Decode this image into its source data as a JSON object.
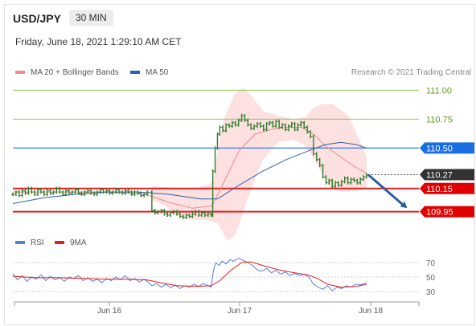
{
  "header": {
    "symbol": "USD/JPY",
    "timeframe": "30 MIN",
    "timestamp": "Friday, June 18, 2021 1:29:10 AM CET"
  },
  "legend_top": {
    "items": [
      {
        "label": "MA 20 + Bollinger Bands",
        "color": "#f08a8a"
      },
      {
        "label": "MA 50",
        "color": "#2b5fb0"
      }
    ],
    "credit": "Research © 2021 Trading Central"
  },
  "legend_bottom": {
    "items": [
      {
        "label": "RSI",
        "color": "#5b7fd6"
      },
      {
        "label": "9MA",
        "color": "#e02020"
      }
    ]
  },
  "colors": {
    "candle": "#2f7d2a",
    "resistance_line": "#8dc44e",
    "pivot_line": "#3c78d8",
    "support_line": "#e02020",
    "bollinger_fill": "#fde0e0",
    "ma20": "#f08a8a",
    "ma50": "#2b5fb0",
    "arrow": "#2c5f9e",
    "rsi": "#5b7fd6",
    "rsi_ma": "#e02020"
  },
  "chart_data": [
    {
      "type": "line",
      "title": "USD/JPY 30 MIN",
      "x_ticks": [
        "Jun 16",
        "Jun 17",
        "Jun 18"
      ],
      "ylim": [
        109.85,
        111.1
      ],
      "levels": [
        {
          "value": 111.0,
          "label": "111.00",
          "kind": "resistance"
        },
        {
          "value": 110.75,
          "label": "110.75",
          "kind": "resistance"
        },
        {
          "value": 110.5,
          "label": "110.50",
          "kind": "pivot"
        },
        {
          "value": 110.27,
          "label": "110.27",
          "kind": "last"
        },
        {
          "value": 110.15,
          "label": "110.15",
          "kind": "support"
        },
        {
          "value": 109.95,
          "label": "109.95",
          "kind": "support"
        }
      ],
      "price_series": {
        "name": "USD/JPY",
        "points": [
          [
            0,
            110.1
          ],
          [
            4,
            110.12
          ],
          [
            8,
            110.09
          ],
          [
            12,
            110.13
          ],
          [
            16,
            110.11
          ],
          [
            20,
            110.15
          ],
          [
            24,
            110.12
          ],
          [
            28,
            110.1
          ],
          [
            32,
            110.14
          ],
          [
            36,
            110.12
          ],
          [
            40,
            110.1
          ],
          [
            44,
            110.13
          ],
          [
            48,
            110.11
          ],
          [
            52,
            110.12
          ],
          [
            56,
            110.15
          ],
          [
            60,
            110.12
          ],
          [
            64,
            110.1
          ],
          [
            68,
            110.13
          ],
          [
            72,
            110.11
          ],
          [
            76,
            110.12
          ],
          [
            80,
            110.14
          ],
          [
            84,
            110.11
          ],
          [
            88,
            110.1
          ],
          [
            92,
            110.12
          ],
          [
            96,
            110.13
          ],
          [
            100,
            110.11
          ],
          [
            104,
            110.1
          ],
          [
            108,
            110.12
          ],
          [
            112,
            110.14
          ],
          [
            116,
            110.12
          ],
          [
            120,
            110.13
          ],
          [
            124,
            110.11
          ],
          [
            128,
            110.12
          ],
          [
            132,
            110.14
          ],
          [
            136,
            110.12
          ],
          [
            140,
            110.11
          ],
          [
            144,
            110.13
          ],
          [
            148,
            110.12
          ],
          [
            152,
            110.1
          ],
          [
            156,
            110.12
          ],
          [
            160,
            110.11
          ],
          [
            164,
            110.09
          ],
          [
            168,
            110.1
          ],
          [
            172,
            110.12
          ],
          [
            178,
            109.96
          ],
          [
            182,
            109.94
          ],
          [
            186,
            109.95
          ],
          [
            190,
            109.96
          ],
          [
            194,
            109.93
          ],
          [
            198,
            109.92
          ],
          [
            202,
            109.94
          ],
          [
            206,
            109.95
          ],
          [
            210,
            109.93
          ],
          [
            214,
            109.91
          ],
          [
            218,
            109.9
          ],
          [
            222,
            109.92
          ],
          [
            226,
            109.91
          ],
          [
            230,
            109.93
          ],
          [
            234,
            109.95
          ],
          [
            238,
            109.92
          ],
          [
            242,
            109.94
          ],
          [
            246,
            109.92
          ],
          [
            250,
            109.93
          ],
          [
            254,
            109.92
          ],
          [
            256,
            110.3
          ],
          [
            259,
            110.5
          ],
          [
            262,
            110.62
          ],
          [
            265,
            110.68
          ],
          [
            269,
            110.65
          ],
          [
            273,
            110.7
          ],
          [
            277,
            110.69
          ],
          [
            281,
            110.72
          ],
          [
            285,
            110.7
          ],
          [
            289,
            110.74
          ],
          [
            293,
            110.78
          ],
          [
            297,
            110.74
          ],
          [
            301,
            110.7
          ],
          [
            305,
            110.67
          ],
          [
            309,
            110.69
          ],
          [
            313,
            110.71
          ],
          [
            317,
            110.69
          ],
          [
            321,
            110.66
          ],
          [
            325,
            110.71
          ],
          [
            329,
            110.72
          ],
          [
            333,
            110.69
          ],
          [
            337,
            110.73
          ],
          [
            341,
            110.68
          ],
          [
            345,
            110.7
          ],
          [
            349,
            110.66
          ],
          [
            353,
            110.69
          ],
          [
            357,
            110.71
          ],
          [
            361,
            110.66
          ],
          [
            365,
            110.7
          ],
          [
            369,
            110.72
          ],
          [
            373,
            110.68
          ],
          [
            377,
            110.64
          ],
          [
            381,
            110.6
          ],
          [
            385,
            110.45
          ],
          [
            389,
            110.4
          ],
          [
            393,
            110.35
          ],
          [
            397,
            110.25
          ],
          [
            401,
            110.2
          ],
          [
            405,
            110.22
          ],
          [
            409,
            110.17
          ],
          [
            413,
            110.2
          ],
          [
            417,
            110.18
          ],
          [
            421,
            110.21
          ],
          [
            425,
            110.24
          ],
          [
            429,
            110.2
          ],
          [
            433,
            110.23
          ],
          [
            437,
            110.22
          ],
          [
            441,
            110.2
          ],
          [
            445,
            110.23
          ],
          [
            449,
            110.25
          ],
          [
            453,
            110.27
          ]
        ]
      },
      "ma20": [
        [
          0,
          110.12
        ],
        [
          60,
          110.12
        ],
        [
          120,
          110.12
        ],
        [
          170,
          110.1
        ],
        [
          200,
          110.03
        ],
        [
          230,
          109.98
        ],
        [
          255,
          110.0
        ],
        [
          270,
          110.2
        ],
        [
          290,
          110.48
        ],
        [
          310,
          110.62
        ],
        [
          330,
          110.66
        ],
        [
          350,
          110.68
        ],
        [
          370,
          110.68
        ],
        [
          385,
          110.62
        ],
        [
          400,
          110.52
        ],
        [
          420,
          110.42
        ],
        [
          440,
          110.33
        ],
        [
          453,
          110.28
        ]
      ],
      "ma50": [
        [
          0,
          110.02
        ],
        [
          40,
          110.07
        ],
        [
          80,
          110.1
        ],
        [
          120,
          110.12
        ],
        [
          160,
          110.12
        ],
        [
          200,
          110.1
        ],
        [
          240,
          110.06
        ],
        [
          262,
          110.06
        ],
        [
          290,
          110.18
        ],
        [
          320,
          110.3
        ],
        [
          350,
          110.4
        ],
        [
          380,
          110.48
        ],
        [
          400,
          110.53
        ],
        [
          420,
          110.55
        ],
        [
          440,
          110.53
        ],
        [
          453,
          110.5
        ]
      ],
      "bollinger_upper": [
        [
          178,
          110.17
        ],
        [
          200,
          110.16
        ],
        [
          230,
          110.14
        ],
        [
          255,
          110.2
        ],
        [
          270,
          110.75
        ],
        [
          285,
          110.98
        ],
        [
          295,
          111.02
        ],
        [
          305,
          110.96
        ],
        [
          320,
          110.82
        ],
        [
          340,
          110.78
        ],
        [
          360,
          110.75
        ],
        [
          375,
          110.77
        ],
        [
          385,
          110.85
        ],
        [
          395,
          110.88
        ],
        [
          410,
          110.88
        ],
        [
          430,
          110.78
        ],
        [
          445,
          110.55
        ],
        [
          453,
          110.42
        ]
      ],
      "bollinger_lower": [
        [
          453,
          110.15
        ],
        [
          440,
          110.13
        ],
        [
          420,
          110.12
        ],
        [
          405,
          110.17
        ],
        [
          390,
          110.35
        ],
        [
          375,
          110.52
        ],
        [
          360,
          110.57
        ],
        [
          340,
          110.55
        ],
        [
          320,
          110.4
        ],
        [
          300,
          110.05
        ],
        [
          285,
          109.75
        ],
        [
          275,
          109.7
        ],
        [
          262,
          109.85
        ],
        [
          245,
          109.88
        ],
        [
          230,
          109.88
        ],
        [
          210,
          109.92
        ],
        [
          195,
          110.0
        ],
        [
          178,
          110.05
        ]
      ],
      "forecast_arrow": {
        "from": [
          455,
          110.27
        ],
        "to": [
          505,
          109.98
        ]
      }
    },
    {
      "type": "line",
      "title": "RSI",
      "ylim": [
        20,
        80
      ],
      "y_ticks": [
        70,
        50,
        30
      ],
      "x_ticks": [
        "Jun 16",
        "Jun 17",
        "Jun 18"
      ],
      "series": [
        {
          "name": "RSI",
          "points": [
            [
              0,
              55
            ],
            [
              6,
              46
            ],
            [
              12,
              52
            ],
            [
              18,
              44
            ],
            [
              24,
              50
            ],
            [
              30,
              47
            ],
            [
              36,
              53
            ],
            [
              42,
              45
            ],
            [
              48,
              51
            ],
            [
              54,
              46
            ],
            [
              60,
              49
            ],
            [
              66,
              44
            ],
            [
              72,
              50
            ],
            [
              78,
              48
            ],
            [
              84,
              52
            ],
            [
              90,
              45
            ],
            [
              96,
              49
            ],
            [
              102,
              44
            ],
            [
              108,
              47
            ],
            [
              114,
              42
            ],
            [
              120,
              48
            ],
            [
              126,
              45
            ],
            [
              132,
              50
            ],
            [
              138,
              46
            ],
            [
              144,
              52
            ],
            [
              150,
              45
            ],
            [
              156,
              48
            ],
            [
              162,
              43
            ],
            [
              168,
              47
            ],
            [
              172,
              44
            ],
            [
              178,
              38
            ],
            [
              184,
              41
            ],
            [
              190,
              36
            ],
            [
              196,
              40
            ],
            [
              202,
              35
            ],
            [
              208,
              39
            ],
            [
              214,
              34
            ],
            [
              220,
              38
            ],
            [
              226,
              36
            ],
            [
              232,
              40
            ],
            [
              238,
              37
            ],
            [
              244,
              41
            ],
            [
              250,
              38
            ],
            [
              254,
              36
            ],
            [
              257,
              60
            ],
            [
              260,
              70
            ],
            [
              264,
              66
            ],
            [
              268,
              72
            ],
            [
              273,
              68
            ],
            [
              278,
              74
            ],
            [
              283,
              72
            ],
            [
              289,
              76
            ],
            [
              295,
              73
            ],
            [
              301,
              70
            ],
            [
              307,
              66
            ],
            [
              313,
              60
            ],
            [
              319,
              58
            ],
            [
              325,
              62
            ],
            [
              331,
              56
            ],
            [
              337,
              59
            ],
            [
              343,
              54
            ],
            [
              349,
              57
            ],
            [
              355,
              52
            ],
            [
              361,
              55
            ],
            [
              367,
              52
            ],
            [
              373,
              54
            ],
            [
              379,
              50
            ],
            [
              385,
              40
            ],
            [
              391,
              36
            ],
            [
              397,
              33
            ],
            [
              403,
              38
            ],
            [
              409,
              31
            ],
            [
              415,
              36
            ],
            [
              421,
              34
            ],
            [
              427,
              38
            ],
            [
              433,
              36
            ],
            [
              439,
              40
            ],
            [
              445,
              39
            ],
            [
              453,
              42
            ]
          ]
        },
        {
          "name": "9MA",
          "points": [
            [
              0,
              51
            ],
            [
              30,
              49
            ],
            [
              60,
              49
            ],
            [
              90,
              48
            ],
            [
              120,
              47
            ],
            [
              150,
              47
            ],
            [
              172,
              46
            ],
            [
              190,
              42
            ],
            [
              210,
              38
            ],
            [
              235,
              37
            ],
            [
              254,
              38
            ],
            [
              265,
              45
            ],
            [
              280,
              60
            ],
            [
              293,
              70
            ],
            [
              305,
              71
            ],
            [
              320,
              66
            ],
            [
              340,
              60
            ],
            [
              360,
              56
            ],
            [
              378,
              53
            ],
            [
              390,
              48
            ],
            [
              403,
              40
            ],
            [
              420,
              36
            ],
            [
              440,
              37
            ],
            [
              453,
              40
            ]
          ]
        }
      ]
    }
  ]
}
